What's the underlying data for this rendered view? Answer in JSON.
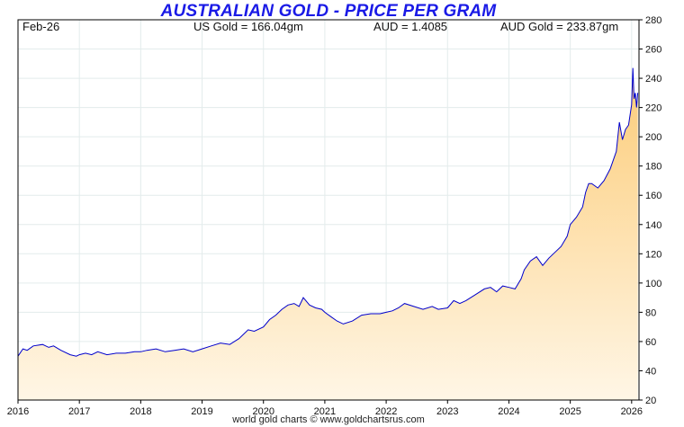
{
  "title": "AUSTRALIAN GOLD - PRICE PER GRAM",
  "info": {
    "date": "Feb-26",
    "us_gold": "US Gold = 166.04gm",
    "aud": "AUD = 1.4085",
    "aud_gold": "AUD Gold = 233.87gm"
  },
  "footer": "world gold charts © www.goldchartsrus.com",
  "colors": {
    "line": "#0000cc",
    "fill_top": "#fccc78",
    "fill_bottom": "#fff6e6",
    "title": "#1a1ae6",
    "grid": "#e3ecec"
  },
  "chart_data": {
    "type": "area",
    "title": "AUSTRALIAN GOLD - PRICE PER GRAM",
    "xlabel": "",
    "ylabel": "",
    "xlim": [
      2016.0,
      2026.12
    ],
    "ylim": [
      20,
      280
    ],
    "y_axis_side": "right",
    "grid": true,
    "x_ticks": [
      "2016",
      "2017",
      "2018",
      "2019",
      "2020",
      "2021",
      "2022",
      "2023",
      "2024",
      "2025",
      "2026"
    ],
    "y_ticks": [
      20,
      40,
      60,
      80,
      100,
      120,
      140,
      160,
      180,
      200,
      220,
      240,
      260,
      280
    ],
    "series": [
      {
        "x": [
          2016.0,
          2016.08,
          2016.15,
          2016.25,
          2016.4,
          2016.5,
          2016.58,
          2016.7,
          2016.85,
          2016.95,
          2017.0,
          2017.1,
          2017.2,
          2017.3,
          2017.45,
          2017.6,
          2017.75,
          2017.9,
          2018.0,
          2018.1,
          2018.25,
          2018.4,
          2018.55,
          2018.7,
          2018.85,
          2019.0,
          2019.15,
          2019.3,
          2019.45,
          2019.6,
          2019.75,
          2019.85,
          2020.0,
          2020.1,
          2020.2,
          2020.3,
          2020.4,
          2020.5,
          2020.58,
          2020.65,
          2020.75,
          2020.85,
          2020.95,
          2021.0,
          2021.1,
          2021.2,
          2021.3,
          2021.45,
          2021.6,
          2021.75,
          2021.9,
          2022.0,
          2022.1,
          2022.2,
          2022.3,
          2022.45,
          2022.6,
          2022.75,
          2022.85,
          2023.0,
          2023.1,
          2023.2,
          2023.3,
          2023.45,
          2023.6,
          2023.7,
          2023.8,
          2023.9,
          2024.0,
          2024.1,
          2024.2,
          2024.25,
          2024.35,
          2024.45,
          2024.55,
          2024.65,
          2024.75,
          2024.85,
          2024.95,
          2025.0,
          2025.1,
          2025.2,
          2025.25,
          2025.3,
          2025.35,
          2025.45,
          2025.55,
          2025.65,
          2025.75,
          2025.8,
          2025.85,
          2025.9,
          2025.95,
          2026.0,
          2026.02,
          2026.04,
          2026.06,
          2026.08,
          2026.1
        ],
        "y": [
          50,
          55,
          54,
          57,
          58,
          56,
          57,
          54,
          51,
          50,
          51,
          52,
          51,
          53,
          51,
          52,
          52,
          53,
          53,
          54,
          55,
          53,
          54,
          55,
          53,
          55,
          57,
          59,
          58,
          62,
          68,
          67,
          70,
          75,
          78,
          82,
          85,
          86,
          84,
          90,
          85,
          83,
          82,
          80,
          77,
          74,
          72,
          74,
          78,
          79,
          79,
          80,
          81,
          83,
          86,
          84,
          82,
          84,
          82,
          83,
          88,
          86,
          88,
          92,
          96,
          97,
          94,
          98,
          97,
          96,
          103,
          109,
          115,
          118,
          112,
          117,
          121,
          125,
          132,
          140,
          145,
          152,
          162,
          168,
          168,
          165,
          170,
          178,
          190,
          210,
          198,
          205,
          208,
          222,
          247,
          226,
          230,
          220,
          230
        ],
        "marker": "none"
      }
    ]
  }
}
